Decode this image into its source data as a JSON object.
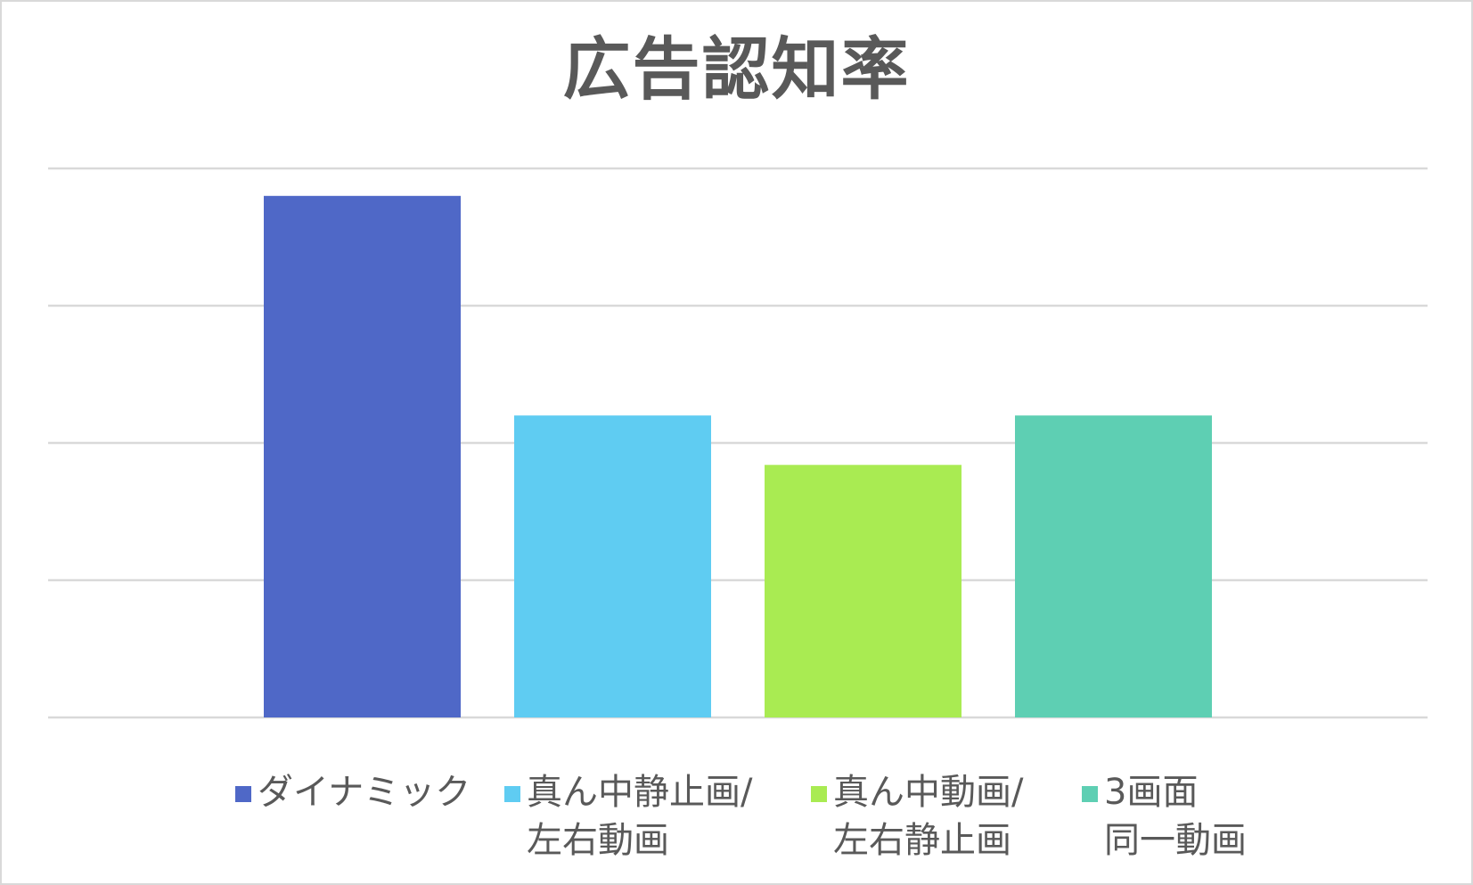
{
  "chart_data": {
    "type": "bar",
    "title": "広告認知率",
    "xlabel": "",
    "ylabel": "",
    "ylim": [
      0,
      100
    ],
    "grid": true,
    "legend_position": "bottom",
    "categories": [
      "ダイナミック",
      "真ん中静止画/左右動画",
      "真ん中動画/左右静止画",
      "3画面同一動画"
    ],
    "values": [
      95,
      55,
      46,
      55
    ],
    "colors": [
      "#4f68c7",
      "#5fccf2",
      "#a9eb52",
      "#5ecfb3"
    ],
    "legend": [
      {
        "line1": "ダイナミック",
        "line2": ""
      },
      {
        "line1": "真ん中静止画/",
        "line2": "左右動画"
      },
      {
        "line1": "真ん中動画/",
        "line2": "左右静止画"
      },
      {
        "line1": "3画面",
        "line2": "同一動画"
      }
    ]
  }
}
